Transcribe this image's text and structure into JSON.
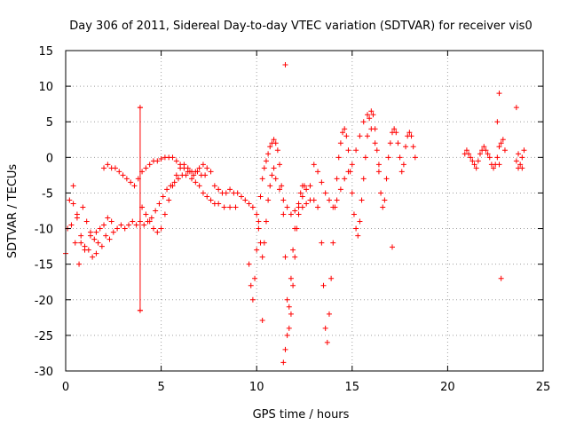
{
  "chart_data": {
    "type": "scatter",
    "title": "Day 306 of 2011, Sidereal Day-to-day VTEC variation (SDTVAR) for receiver vis0",
    "xlabel": "GPS time / hours",
    "ylabel": "SDTVAR / TECUs",
    "xlim": [
      0,
      25
    ],
    "ylim": [
      -30,
      15
    ],
    "xticks": [
      0,
      5,
      10,
      15,
      20,
      25
    ],
    "yticks": [
      -30,
      -25,
      -20,
      -15,
      -10,
      -5,
      0,
      5,
      10,
      15
    ],
    "grid": true,
    "legend": "none",
    "marker": "+",
    "color": "#ff0000",
    "series": [
      {
        "values": [
          [
            0.0,
            -13.5
          ],
          [
            0.1,
            -10.0
          ],
          [
            0.2,
            -6.0
          ],
          [
            0.3,
            -9.5
          ],
          [
            0.4,
            -4.0
          ],
          [
            0.5,
            -12.0
          ],
          [
            0.6,
            -8.0
          ],
          [
            0.7,
            -15.0
          ],
          [
            0.8,
            -11.0
          ],
          [
            0.9,
            -7.0
          ],
          [
            1.0,
            -12.5
          ],
          [
            1.1,
            -9.0
          ],
          [
            1.2,
            -13.0
          ],
          [
            1.3,
            -10.5
          ],
          [
            1.4,
            -14.0
          ],
          [
            1.5,
            -11.5
          ],
          [
            1.6,
            -13.5
          ],
          [
            1.7,
            -12.0
          ],
          [
            1.8,
            -10.0
          ],
          [
            1.9,
            -12.5
          ],
          [
            2.0,
            -9.5
          ],
          [
            2.1,
            -11.0
          ],
          [
            2.2,
            -8.5
          ],
          [
            2.3,
            -11.5
          ],
          [
            2.4,
            -9.0
          ],
          [
            2.5,
            -10.5
          ],
          [
            2.7,
            -10.0
          ],
          [
            2.9,
            -9.5
          ],
          [
            3.1,
            -10.0
          ],
          [
            3.3,
            -9.5
          ],
          [
            3.5,
            -9.0
          ],
          [
            3.7,
            -9.5
          ],
          [
            3.9,
            -9.0
          ],
          [
            4.1,
            -9.5
          ],
          [
            4.3,
            -9.0
          ],
          [
            4.5,
            -8.5
          ],
          [
            4.7,
            -7.5
          ],
          [
            4.9,
            -6.5
          ],
          [
            5.1,
            -5.5
          ],
          [
            5.3,
            -4.5
          ],
          [
            5.5,
            -4.0
          ],
          [
            5.7,
            -3.5
          ],
          [
            5.9,
            -3.0
          ],
          [
            6.1,
            -2.5
          ],
          [
            6.3,
            -2.5
          ],
          [
            6.5,
            -2.0
          ],
          [
            6.7,
            -2.5
          ],
          [
            6.9,
            -2.0
          ],
          [
            7.1,
            -2.5
          ],
          [
            7.3,
            -2.5
          ],
          [
            0.4,
            -6.5
          ],
          [
            0.6,
            -8.5
          ],
          [
            0.8,
            -12.0
          ],
          [
            1.0,
            -13.0
          ],
          [
            1.3,
            -11.0
          ],
          [
            1.6,
            -10.5
          ],
          [
            2.0,
            -1.5
          ],
          [
            2.2,
            -1.0
          ],
          [
            2.4,
            -1.5
          ],
          [
            2.6,
            -1.5
          ],
          [
            2.8,
            -2.0
          ],
          [
            3.0,
            -2.5
          ],
          [
            3.2,
            -3.0
          ],
          [
            3.4,
            -3.5
          ],
          [
            3.6,
            -4.0
          ],
          [
            3.8,
            -3.0
          ],
          [
            4.0,
            -2.0
          ],
          [
            4.2,
            -1.5
          ],
          [
            4.4,
            -1.0
          ],
          [
            4.6,
            -0.5
          ],
          [
            4.8,
            -0.5
          ],
          [
            5.0,
            -0.2
          ],
          [
            5.2,
            0.0
          ],
          [
            5.4,
            0.0
          ],
          [
            5.6,
            0.0
          ],
          [
            5.8,
            -0.5
          ],
          [
            6.0,
            -1.0
          ],
          [
            6.2,
            -1.5
          ],
          [
            6.4,
            -2.0
          ],
          [
            6.6,
            -3.0
          ],
          [
            6.8,
            -3.5
          ],
          [
            7.0,
            -4.0
          ],
          [
            7.2,
            -5.0
          ],
          [
            7.4,
            -5.5
          ],
          [
            7.6,
            -6.0
          ],
          [
            7.8,
            -6.5
          ],
          [
            8.0,
            -6.5
          ],
          [
            8.3,
            -7.0
          ],
          [
            8.6,
            -7.0
          ],
          [
            8.9,
            -7.0
          ],
          [
            4.0,
            -7.0
          ],
          [
            4.2,
            -8.0
          ],
          [
            4.4,
            -9.0
          ],
          [
            4.6,
            -10.0
          ],
          [
            4.8,
            -10.5
          ],
          [
            5.0,
            -10.0
          ],
          [
            5.2,
            -8.0
          ],
          [
            5.4,
            -6.0
          ],
          [
            5.6,
            -4.0
          ],
          [
            5.8,
            -2.5
          ],
          [
            6.0,
            -1.5
          ],
          [
            6.2,
            -1.0
          ],
          [
            6.4,
            -1.5
          ],
          [
            6.6,
            -2.0
          ],
          [
            6.8,
            -2.0
          ],
          [
            7.0,
            -1.5
          ],
          [
            7.2,
            -1.0
          ],
          [
            7.4,
            -1.5
          ],
          [
            7.6,
            -2.0
          ],
          [
            7.8,
            -4.0
          ],
          [
            8.0,
            -4.5
          ],
          [
            8.2,
            -5.0
          ],
          [
            8.4,
            -5.0
          ],
          [
            8.6,
            -4.5
          ],
          [
            8.8,
            -5.0
          ],
          [
            9.0,
            -5.0
          ],
          [
            9.2,
            -5.5
          ],
          [
            9.4,
            -6.0
          ],
          [
            9.6,
            -6.5
          ],
          [
            9.8,
            -7.0
          ],
          [
            10.0,
            -8.0
          ],
          [
            10.1,
            -10.0
          ],
          [
            10.2,
            -12.0
          ],
          [
            10.3,
            -14.0
          ],
          [
            10.4,
            -12.0
          ],
          [
            10.5,
            -9.0
          ],
          [
            10.6,
            -6.0
          ],
          [
            10.7,
            -4.0
          ],
          [
            10.8,
            -2.5
          ],
          [
            10.9,
            -1.5
          ],
          [
            9.6,
            -15.0
          ],
          [
            9.7,
            -18.0
          ],
          [
            9.8,
            -20.0
          ],
          [
            9.9,
            -17.0
          ],
          [
            10.0,
            -13.0
          ],
          [
            10.1,
            -9.0
          ],
          [
            10.2,
            -5.5
          ],
          [
            10.3,
            -3.0
          ],
          [
            10.4,
            -1.5
          ],
          [
            10.5,
            -0.5
          ],
          [
            10.6,
            0.5
          ],
          [
            10.7,
            1.5
          ],
          [
            10.8,
            2.0
          ],
          [
            10.9,
            2.5
          ],
          [
            11.0,
            2.0
          ],
          [
            11.1,
            1.0
          ],
          [
            11.2,
            -1.0
          ],
          [
            11.3,
            -4.0
          ],
          [
            11.4,
            -8.0
          ],
          [
            11.5,
            -14.0
          ],
          [
            11.6,
            -20.0
          ],
          [
            11.7,
            -24.0
          ],
          [
            11.8,
            -22.0
          ],
          [
            11.9,
            -18.0
          ],
          [
            12.0,
            -14.0
          ],
          [
            12.1,
            -10.0
          ],
          [
            12.2,
            -7.0
          ],
          [
            12.3,
            -5.0
          ],
          [
            12.4,
            -4.0
          ],
          [
            12.5,
            -4.0
          ],
          [
            11.5,
            -27.0
          ],
          [
            11.6,
            -25.0
          ],
          [
            11.7,
            -21.0
          ],
          [
            11.8,
            -17.0
          ],
          [
            11.9,
            -13.0
          ],
          [
            12.0,
            -10.0
          ],
          [
            12.2,
            -8.0
          ],
          [
            12.4,
            -7.0
          ],
          [
            12.6,
            -6.5
          ],
          [
            12.8,
            -6.0
          ],
          [
            13.0,
            -6.0
          ],
          [
            13.2,
            -7.0
          ],
          [
            13.4,
            -12.0
          ],
          [
            13.5,
            -18.0
          ],
          [
            13.6,
            -24.0
          ],
          [
            13.7,
            -26.0
          ],
          [
            13.8,
            -22.0
          ],
          [
            13.9,
            -17.0
          ],
          [
            14.0,
            -12.0
          ],
          [
            14.1,
            -7.0
          ],
          [
            14.2,
            -3.0
          ],
          [
            14.3,
            0.0
          ],
          [
            14.4,
            2.0
          ],
          [
            14.5,
            3.5
          ],
          [
            14.6,
            4.0
          ],
          [
            14.7,
            3.0
          ],
          [
            14.8,
            1.0
          ],
          [
            14.9,
            -2.0
          ],
          [
            15.0,
            -5.0
          ],
          [
            15.1,
            -8.0
          ],
          [
            15.2,
            -10.0
          ],
          [
            15.3,
            -11.0
          ],
          [
            15.4,
            -9.0
          ],
          [
            15.5,
            -6.0
          ],
          [
            15.6,
            -3.0
          ],
          [
            15.7,
            0.0
          ],
          [
            15.8,
            3.0
          ],
          [
            15.9,
            5.5
          ],
          [
            16.0,
            6.5
          ],
          [
            16.1,
            6.0
          ],
          [
            16.2,
            4.0
          ],
          [
            16.3,
            1.0
          ],
          [
            16.4,
            -2.0
          ],
          [
            16.5,
            -5.0
          ],
          [
            16.6,
            -7.0
          ],
          [
            16.7,
            -6.0
          ],
          [
            16.8,
            -3.0
          ],
          [
            16.9,
            0.0
          ],
          [
            17.0,
            2.0
          ],
          [
            17.1,
            3.5
          ],
          [
            17.2,
            4.0
          ],
          [
            17.3,
            3.5
          ],
          [
            17.4,
            2.0
          ],
          [
            17.5,
            0.0
          ],
          [
            17.6,
            -2.0
          ],
          [
            17.7,
            -1.0
          ],
          [
            17.8,
            1.5
          ],
          [
            17.9,
            3.0
          ],
          [
            18.0,
            3.5
          ],
          [
            18.1,
            3.0
          ],
          [
            18.2,
            1.5
          ],
          [
            18.3,
            0.0
          ],
          [
            15.0,
            -1.0
          ],
          [
            15.2,
            1.0
          ],
          [
            15.4,
            3.0
          ],
          [
            15.6,
            5.0
          ],
          [
            15.8,
            6.0
          ],
          [
            16.0,
            4.0
          ],
          [
            16.2,
            2.0
          ],
          [
            16.4,
            -1.0
          ],
          [
            13.0,
            -1.0
          ],
          [
            13.2,
            -2.0
          ],
          [
            13.4,
            -3.5
          ],
          [
            13.6,
            -5.0
          ],
          [
            13.8,
            -6.0
          ],
          [
            14.0,
            -7.0
          ],
          [
            14.2,
            -6.0
          ],
          [
            14.4,
            -4.5
          ],
          [
            14.6,
            -3.0
          ],
          [
            14.8,
            -2.0
          ],
          [
            11.0,
            -3.0
          ],
          [
            11.2,
            -4.5
          ],
          [
            11.4,
            -6.0
          ],
          [
            11.6,
            -7.0
          ],
          [
            11.8,
            -8.0
          ],
          [
            12.0,
            -7.5
          ],
          [
            12.2,
            -6.5
          ],
          [
            12.4,
            -5.5
          ],
          [
            12.6,
            -4.5
          ],
          [
            12.8,
            -4.0
          ],
          [
            20.9,
            0.5
          ],
          [
            21.0,
            1.0
          ],
          [
            21.1,
            0.5
          ],
          [
            21.2,
            0.0
          ],
          [
            21.3,
            -0.5
          ],
          [
            21.4,
            -1.0
          ],
          [
            21.5,
            -1.5
          ],
          [
            21.6,
            -0.5
          ],
          [
            21.7,
            0.5
          ],
          [
            21.8,
            1.0
          ],
          [
            21.9,
            1.5
          ],
          [
            22.0,
            1.0
          ],
          [
            22.1,
            0.5
          ],
          [
            22.2,
            0.0
          ],
          [
            22.3,
            -1.0
          ],
          [
            22.4,
            -1.5
          ],
          [
            22.5,
            -1.0
          ],
          [
            22.6,
            0.0
          ],
          [
            22.7,
            1.5
          ],
          [
            22.8,
            2.0
          ],
          [
            22.9,
            2.5
          ],
          [
            23.0,
            1.0
          ],
          [
            23.6,
            -0.5
          ],
          [
            23.7,
            -1.5
          ],
          [
            23.8,
            -1.0
          ],
          [
            23.9,
            0.0
          ],
          [
            24.0,
            1.0
          ],
          [
            23.9,
            -1.5
          ],
          [
            23.7,
            0.5
          ],
          [
            22.7,
            -1.0
          ],
          [
            11.5,
            13.0
          ],
          [
            11.4,
            -28.8
          ],
          [
            10.3,
            -22.9
          ],
          [
            22.8,
            -17.0
          ],
          [
            22.7,
            9.0
          ],
          [
            23.6,
            7.0
          ],
          [
            17.1,
            -12.6
          ],
          [
            22.6,
            5.0
          ],
          [
            3.9,
            7.0
          ],
          [
            3.9,
            -21.5
          ]
        ]
      }
    ],
    "error_bar": {
      "x": 3.9,
      "y_low": -21.5,
      "y_high": 7.0
    }
  }
}
